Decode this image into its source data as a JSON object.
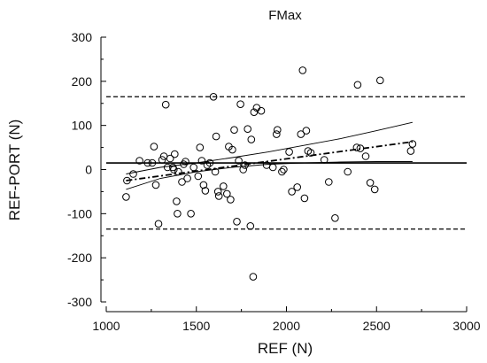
{
  "chart_data": {
    "type": "scatter",
    "title": "FMax",
    "xlabel": "REF (N)",
    "ylabel": "REF-PORT (N)",
    "xlim": [
      1000,
      3000
    ],
    "ylim": [
      -300,
      300
    ],
    "xticks": [
      1000,
      1500,
      2000,
      2500,
      3000
    ],
    "yticks": [
      300,
      200,
      100,
      0,
      -100,
      -200,
      -300
    ],
    "grid": false,
    "points": [
      [
        1115,
        -25
      ],
      [
        1110,
        -62
      ],
      [
        1150,
        -10
      ],
      [
        1185,
        20
      ],
      [
        1230,
        15
      ],
      [
        1255,
        15
      ],
      [
        1265,
        52
      ],
      [
        1275,
        -35
      ],
      [
        1290,
        -123
      ],
      [
        1310,
        22
      ],
      [
        1320,
        30
      ],
      [
        1330,
        147
      ],
      [
        1340,
        5
      ],
      [
        1355,
        25
      ],
      [
        1370,
        5
      ],
      [
        1375,
        0
      ],
      [
        1380,
        35
      ],
      [
        1390,
        -72
      ],
      [
        1395,
        -100
      ],
      [
        1400,
        -5
      ],
      [
        1420,
        -28
      ],
      [
        1430,
        12
      ],
      [
        1440,
        18
      ],
      [
        1450,
        -20
      ],
      [
        1470,
        -100
      ],
      [
        1485,
        5
      ],
      [
        1510,
        -15
      ],
      [
        1520,
        50
      ],
      [
        1530,
        20
      ],
      [
        1540,
        -35
      ],
      [
        1550,
        -48
      ],
      [
        1560,
        10
      ],
      [
        1575,
        15
      ],
      [
        1595,
        165
      ],
      [
        1605,
        -5
      ],
      [
        1610,
        75
      ],
      [
        1620,
        -50
      ],
      [
        1625,
        -60
      ],
      [
        1650,
        -38
      ],
      [
        1670,
        -55
      ],
      [
        1680,
        52
      ],
      [
        1690,
        -68
      ],
      [
        1700,
        45
      ],
      [
        1710,
        90
      ],
      [
        1725,
        -118
      ],
      [
        1735,
        20
      ],
      [
        1745,
        148
      ],
      [
        1760,
        0
      ],
      [
        1770,
        10
      ],
      [
        1785,
        92
      ],
      [
        1800,
        -128
      ],
      [
        1805,
        68
      ],
      [
        1815,
        -243
      ],
      [
        1820,
        130
      ],
      [
        1835,
        140
      ],
      [
        1860,
        133
      ],
      [
        1890,
        10
      ],
      [
        1925,
        5
      ],
      [
        1945,
        80
      ],
      [
        1950,
        90
      ],
      [
        1975,
        -5
      ],
      [
        1985,
        0
      ],
      [
        2015,
        40
      ],
      [
        2030,
        -50
      ],
      [
        2060,
        -40
      ],
      [
        2080,
        80
      ],
      [
        2090,
        225
      ],
      [
        2100,
        -65
      ],
      [
        2110,
        88
      ],
      [
        2120,
        42
      ],
      [
        2135,
        38
      ],
      [
        2210,
        22
      ],
      [
        2235,
        -28
      ],
      [
        2270,
        -110
      ],
      [
        2340,
        -5
      ],
      [
        2390,
        50
      ],
      [
        2395,
        192
      ],
      [
        2410,
        48
      ],
      [
        2440,
        30
      ],
      [
        2465,
        -30
      ],
      [
        2490,
        -45
      ],
      [
        2520,
        202
      ],
      [
        2690,
        42
      ],
      [
        2700,
        58
      ]
    ],
    "reference_lines": {
      "mean": 15,
      "upper_limit": 165,
      "lower_limit": -135
    },
    "regression_line": {
      "x": [
        1110,
        2700
      ],
      "y": [
        -25,
        63
      ]
    },
    "confidence_band": {
      "upper": {
        "x": [
          1110,
          1300,
          1500,
          1700,
          1900,
          2100,
          2300,
          2500,
          2700
        ],
        "y": [
          -10,
          5,
          15,
          27,
          40,
          55,
          70,
          88,
          107
        ]
      },
      "lower": {
        "x": [
          1110,
          1300,
          1500,
          1700,
          1900,
          2100,
          2300,
          2500,
          2700
        ],
        "y": [
          -45,
          -20,
          -5,
          5,
          12,
          15,
          17,
          18,
          18
        ]
      }
    }
  }
}
